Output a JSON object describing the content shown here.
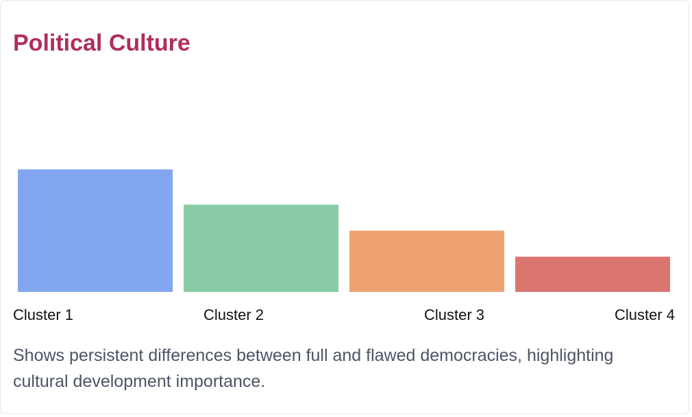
{
  "card": {
    "title": "Political Culture",
    "title_color": "#b02d5e",
    "description": "Shows persistent differences between full and flawed democracies, highlighting cultural development importance."
  },
  "chart_data": {
    "type": "bar",
    "title": "Political Culture",
    "xlabel": "",
    "ylabel": "",
    "grid": false,
    "categories": [
      "Cluster 1",
      "Cluster 2",
      "Cluster 3",
      "Cluster 4"
    ],
    "values": [
      8.0,
      5.7,
      4.0,
      2.3
    ],
    "ylim": [
      0,
      10
    ],
    "colors": [
      "#82a6f0",
      "#89cba7",
      "#eea270",
      "#db7570"
    ]
  }
}
